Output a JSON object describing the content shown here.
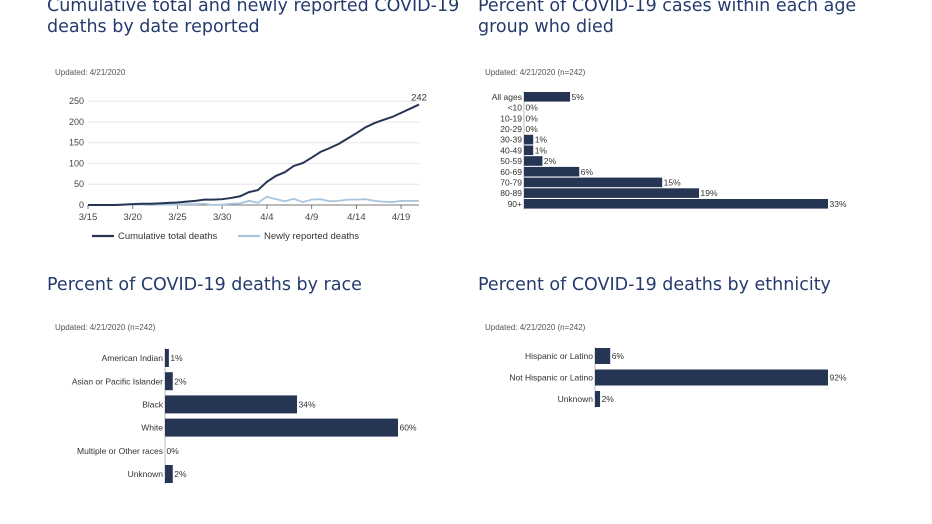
{
  "colors": {
    "dark": "#253553",
    "light": "#a9c4dc",
    "title": "#253b6e",
    "axis": "#777777",
    "grid": "#e6e6e6"
  },
  "panels": [
    {
      "title": "Cumulative total and newly reported COVID-19 deaths by date reported",
      "title_lines": [
        "Cumulative total and newly reported COVID-19",
        "deaths by date reported"
      ],
      "updated": "Updated: 4/21/2020"
    },
    {
      "title": "Percent of COVID-19 cases within each age group who died",
      "title_lines": [
        "Percent of COVID-19 cases within each age",
        "group who died"
      ],
      "updated": "Updated: 4/21/2020 (n=242)"
    },
    {
      "title": "Percent of COVID-19 deaths by race",
      "title_lines": [
        "Percent of COVID-19 deaths by race"
      ],
      "updated": "Updated: 4/21/2020 (n=242)"
    },
    {
      "title": "Percent of COVID-19 deaths by ethnicity",
      "title_lines": [
        "Percent of COVID-19 deaths by ethnicity"
      ],
      "updated": "Updated: 4/21/2020 (n=242)"
    }
  ],
  "chart_data": [
    {
      "type": "line",
      "title": "Cumulative total and newly reported COVID-19 deaths by date reported",
      "x": [
        "3/15",
        "3/16",
        "3/17",
        "3/18",
        "3/19",
        "3/20",
        "3/21",
        "3/22",
        "3/23",
        "3/24",
        "3/25",
        "3/26",
        "3/27",
        "3/28",
        "3/29",
        "3/30",
        "3/31",
        "4/1",
        "4/2",
        "4/3",
        "4/4",
        "4/5",
        "4/6",
        "4/7",
        "4/8",
        "4/9",
        "4/10",
        "4/11",
        "4/12",
        "4/13",
        "4/14",
        "4/15",
        "4/16",
        "4/17",
        "4/18",
        "4/19",
        "4/20",
        "4/21"
      ],
      "x_ticks": [
        "3/15",
        "3/20",
        "3/25",
        "3/30",
        "4/4",
        "4/9",
        "4/14",
        "4/19"
      ],
      "y_ticks": [
        0,
        50,
        100,
        150,
        200,
        250
      ],
      "ylim": [
        0,
        265
      ],
      "series": [
        {
          "name": "Cumulative total deaths",
          "color": "#253553",
          "values": [
            0,
            0,
            0,
            0,
            1,
            2,
            3,
            3,
            4,
            5,
            6,
            8,
            10,
            13,
            13,
            14,
            17,
            21,
            31,
            36,
            56,
            70,
            79,
            94,
            101,
            114,
            128,
            137,
            147,
            160,
            173,
            187,
            197,
            205,
            212,
            222,
            232,
            242
          ]
        },
        {
          "name": "Newly reported deaths",
          "color": "#a9c4dc",
          "values": [
            0,
            0,
            0,
            0,
            1,
            1,
            1,
            0,
            1,
            1,
            1,
            2,
            2,
            3,
            0,
            1,
            3,
            4,
            10,
            5,
            20,
            14,
            9,
            15,
            7,
            13,
            14,
            9,
            10,
            13,
            13,
            14,
            10,
            8,
            7,
            10,
            10,
            10
          ]
        }
      ],
      "end_label": "242",
      "legend": "bottom"
    },
    {
      "type": "bar",
      "orientation": "horizontal",
      "title": "Percent of COVID-19 cases within each age group who died",
      "categories": [
        "All ages",
        "<10",
        "10-19",
        "20-29",
        "30-39",
        "40-49",
        "50-59",
        "60-69",
        "70-79",
        "80-89",
        "90+"
      ],
      "values": [
        5,
        0,
        0,
        0,
        1,
        1,
        2,
        6,
        15,
        19,
        33
      ],
      "labels": [
        "5%",
        "0%",
        "0%",
        "0%",
        "1%",
        "1%",
        "2%",
        "6%",
        "15%",
        "19%",
        "33%"
      ],
      "xlim": [
        0,
        33
      ]
    },
    {
      "type": "bar",
      "orientation": "horizontal",
      "title": "Percent of COVID-19 deaths by race",
      "categories": [
        "American Indian",
        "Asian or Pacific Islander",
        "Black",
        "White",
        "Multiple or Other races",
        "Unknown"
      ],
      "values": [
        1,
        2,
        34,
        60,
        0,
        2
      ],
      "labels": [
        "1%",
        "2%",
        "34%",
        "60%",
        "0%",
        "2%"
      ],
      "xlim": [
        0,
        60
      ]
    },
    {
      "type": "bar",
      "orientation": "horizontal",
      "title": "Percent of COVID-19 deaths by ethnicity",
      "categories": [
        "Hispanic or Latino",
        "Not Hispanic or Latino",
        "Unknown"
      ],
      "values": [
        6,
        92,
        2
      ],
      "labels": [
        "6%",
        "92%",
        "2%"
      ],
      "xlim": [
        0,
        92
      ]
    }
  ]
}
